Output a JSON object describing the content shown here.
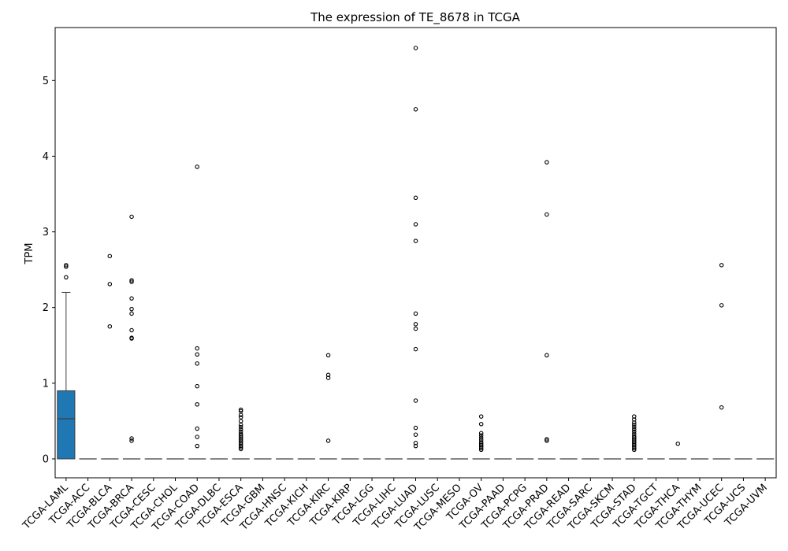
{
  "chart_data": {
    "type": "box",
    "title": "The expression of TE_8678 in TCGA",
    "xlabel": "",
    "ylabel": "TPM",
    "ylim": [
      -0.25,
      5.7
    ],
    "yticks": [
      0,
      1,
      2,
      3,
      4,
      5
    ],
    "grid": false,
    "legend": "none",
    "box_color": "#1f77b4",
    "categories": [
      "TCGA-LAML",
      "TCGA-ACC",
      "TCGA-BLCA",
      "TCGA-BRCA",
      "TCGA-CESC",
      "TCGA-CHOL",
      "TCGA-COAD",
      "TCGA-DLBC",
      "TCGA-ESCA",
      "TCGA-GBM",
      "TCGA-HNSC",
      "TCGA-KICH",
      "TCGA-KIRC",
      "TCGA-KIRP",
      "TCGA-LGG",
      "TCGA-LIHC",
      "TCGA-LUAD",
      "TCGA-LUSC",
      "TCGA-MESO",
      "TCGA-OV",
      "TCGA-PAAD",
      "TCGA-PCPG",
      "TCGA-PRAD",
      "TCGA-READ",
      "TCGA-SARC",
      "TCGA-SKCM",
      "TCGA-STAD",
      "TCGA-TGCT",
      "TCGA-THCA",
      "TCGA-THYM",
      "TCGA-UCEC",
      "TCGA-UCS",
      "TCGA-UVM"
    ],
    "boxes": [
      {
        "whislo": 0,
        "q1": 0,
        "med": 0.53,
        "q3": 0.9,
        "whishi": 2.2,
        "fliers": [
          2.4,
          2.54,
          2.56
        ]
      },
      {
        "whislo": 0,
        "q1": 0,
        "med": 0,
        "q3": 0,
        "whishi": 0,
        "fliers": []
      },
      {
        "whislo": 0,
        "q1": 0,
        "med": 0,
        "q3": 0,
        "whishi": 0,
        "fliers": [
          1.75,
          2.31,
          2.68
        ]
      },
      {
        "whislo": 0,
        "q1": 0,
        "med": 0,
        "q3": 0,
        "whishi": 0,
        "fliers": [
          0.24,
          0.27,
          1.59,
          1.6,
          1.7,
          1.92,
          1.98,
          2.12,
          2.34,
          2.36,
          3.2
        ]
      },
      {
        "whislo": 0,
        "q1": 0,
        "med": 0,
        "q3": 0,
        "whishi": 0,
        "fliers": []
      },
      {
        "whislo": 0,
        "q1": 0,
        "med": 0,
        "q3": 0,
        "whishi": 0,
        "fliers": []
      },
      {
        "whislo": 0,
        "q1": 0,
        "med": 0,
        "q3": 0,
        "whishi": 0,
        "fliers": [
          0.17,
          0.29,
          0.4,
          0.72,
          0.96,
          1.26,
          1.38,
          1.46,
          3.86
        ]
      },
      {
        "whislo": 0,
        "q1": 0,
        "med": 0,
        "q3": 0,
        "whishi": 0,
        "fliers": []
      },
      {
        "whislo": 0,
        "q1": 0,
        "med": 0,
        "q3": 0,
        "whishi": 0,
        "fliers": [
          0.13,
          0.15,
          0.17,
          0.19,
          0.21,
          0.23,
          0.25,
          0.27,
          0.29,
          0.31,
          0.33,
          0.36,
          0.39,
          0.42,
          0.45,
          0.5,
          0.55,
          0.58,
          0.63,
          0.65
        ]
      },
      {
        "whislo": 0,
        "q1": 0,
        "med": 0,
        "q3": 0,
        "whishi": 0,
        "fliers": []
      },
      {
        "whislo": 0,
        "q1": 0,
        "med": 0,
        "q3": 0,
        "whishi": 0,
        "fliers": []
      },
      {
        "whislo": 0,
        "q1": 0,
        "med": 0,
        "q3": 0,
        "whishi": 0,
        "fliers": []
      },
      {
        "whislo": 0,
        "q1": 0,
        "med": 0,
        "q3": 0,
        "whishi": 0,
        "fliers": [
          0.24,
          1.07,
          1.11,
          1.37
        ]
      },
      {
        "whislo": 0,
        "q1": 0,
        "med": 0,
        "q3": 0,
        "whishi": 0,
        "fliers": []
      },
      {
        "whislo": 0,
        "q1": 0,
        "med": 0,
        "q3": 0,
        "whishi": 0,
        "fliers": []
      },
      {
        "whislo": 0,
        "q1": 0,
        "med": 0,
        "q3": 0,
        "whishi": 0,
        "fliers": []
      },
      {
        "whislo": 0,
        "q1": 0,
        "med": 0,
        "q3": 0,
        "whishi": 0,
        "fliers": [
          0.17,
          0.21,
          0.32,
          0.41,
          0.77,
          1.45,
          1.72,
          1.78,
          1.92,
          2.88,
          3.1,
          3.45,
          4.62,
          5.43
        ]
      },
      {
        "whislo": 0,
        "q1": 0,
        "med": 0,
        "q3": 0,
        "whishi": 0,
        "fliers": []
      },
      {
        "whislo": 0,
        "q1": 0,
        "med": 0,
        "q3": 0,
        "whishi": 0,
        "fliers": []
      },
      {
        "whislo": 0,
        "q1": 0,
        "med": 0,
        "q3": 0,
        "whishi": 0,
        "fliers": [
          0.12,
          0.14,
          0.16,
          0.18,
          0.2,
          0.22,
          0.25,
          0.28,
          0.31,
          0.34,
          0.46,
          0.56
        ]
      },
      {
        "whislo": 0,
        "q1": 0,
        "med": 0,
        "q3": 0,
        "whishi": 0,
        "fliers": []
      },
      {
        "whislo": 0,
        "q1": 0,
        "med": 0,
        "q3": 0,
        "whishi": 0,
        "fliers": []
      },
      {
        "whislo": 0,
        "q1": 0,
        "med": 0,
        "q3": 0,
        "whishi": 0,
        "fliers": [
          0.24,
          0.26,
          1.37,
          3.23,
          3.92
        ]
      },
      {
        "whislo": 0,
        "q1": 0,
        "med": 0,
        "q3": 0,
        "whishi": 0,
        "fliers": []
      },
      {
        "whislo": 0,
        "q1": 0,
        "med": 0,
        "q3": 0,
        "whishi": 0,
        "fliers": []
      },
      {
        "whislo": 0,
        "q1": 0,
        "med": 0,
        "q3": 0,
        "whishi": 0,
        "fliers": []
      },
      {
        "whislo": 0,
        "q1": 0,
        "med": 0,
        "q3": 0,
        "whishi": 0,
        "fliers": [
          0.12,
          0.14,
          0.16,
          0.18,
          0.2,
          0.22,
          0.24,
          0.26,
          0.28,
          0.3,
          0.33,
          0.36,
          0.39,
          0.42,
          0.45,
          0.48,
          0.52,
          0.56
        ]
      },
      {
        "whislo": 0,
        "q1": 0,
        "med": 0,
        "q3": 0,
        "whishi": 0,
        "fliers": []
      },
      {
        "whislo": 0,
        "q1": 0,
        "med": 0,
        "q3": 0,
        "whishi": 0,
        "fliers": [
          0.2
        ]
      },
      {
        "whislo": 0,
        "q1": 0,
        "med": 0,
        "q3": 0,
        "whishi": 0,
        "fliers": []
      },
      {
        "whislo": 0,
        "q1": 0,
        "med": 0,
        "q3": 0,
        "whishi": 0,
        "fliers": [
          0.68,
          2.03,
          2.56
        ]
      },
      {
        "whislo": 0,
        "q1": 0,
        "med": 0,
        "q3": 0,
        "whishi": 0,
        "fliers": []
      },
      {
        "whislo": 0,
        "q1": 0,
        "med": 0,
        "q3": 0,
        "whishi": 0,
        "fliers": []
      }
    ]
  }
}
